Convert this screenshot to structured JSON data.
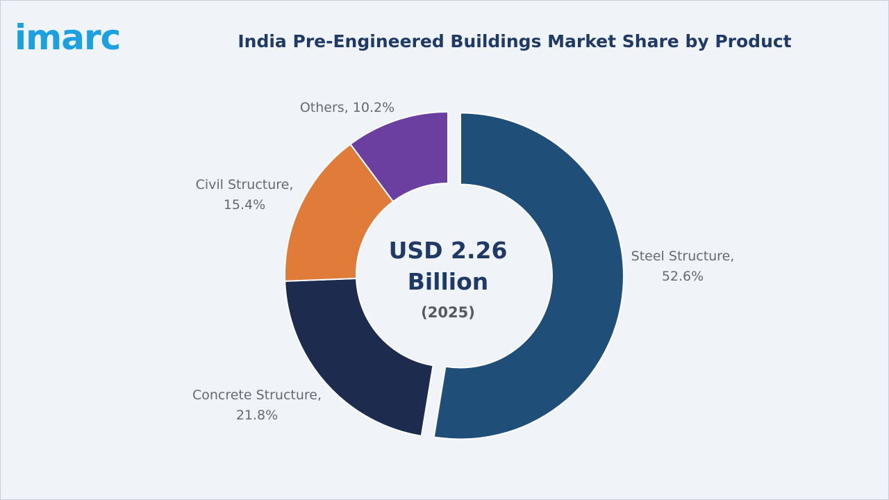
{
  "brand": {
    "logo_text": "imarc",
    "color": "#1ba1e2"
  },
  "chart_data": {
    "type": "pie",
    "variant": "donut",
    "title": "India Pre-Engineered Buildings Market Share by Product",
    "unit": "%",
    "slices": [
      {
        "label": "Steel Structure",
        "value": 52.6,
        "display": "52.6%",
        "color": "#1f4e79",
        "exploded": true
      },
      {
        "label": "Concrete Structure",
        "value": 21.8,
        "display": "21.8%",
        "color": "#1c2b4e",
        "exploded": false
      },
      {
        "label": "Civil Structure",
        "value": 15.4,
        "display": "15.4%",
        "color": "#e07b39",
        "exploded": false
      },
      {
        "label": "Others",
        "value": 10.2,
        "display": "10.2%",
        "color": "#6b3fa0",
        "exploded": false
      }
    ],
    "center": {
      "line1": "USD 2.26",
      "line2": "Billion",
      "line3": "(2025)"
    },
    "legend": "none"
  }
}
